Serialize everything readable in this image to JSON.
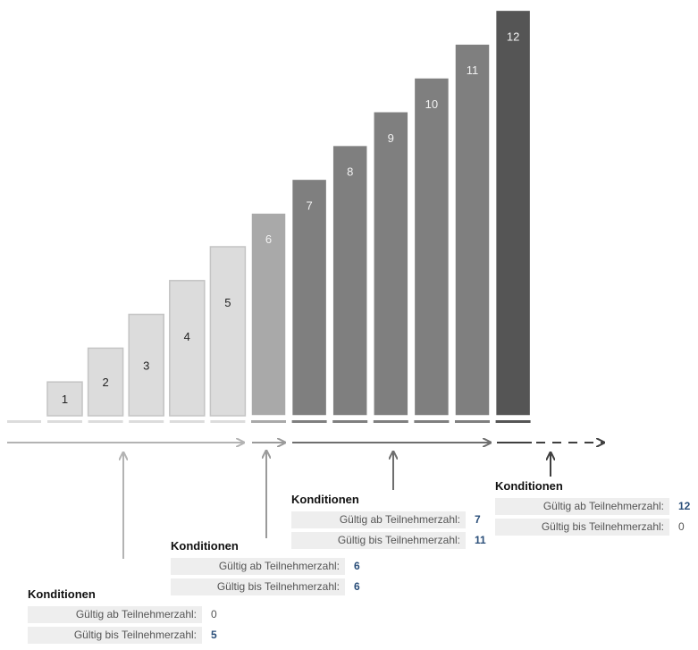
{
  "tiers": [
    {
      "label": "1",
      "value": 1,
      "group": "a"
    },
    {
      "label": "2",
      "value": 2,
      "group": "a"
    },
    {
      "label": "3",
      "value": 3,
      "group": "a"
    },
    {
      "label": "4",
      "value": 4,
      "group": "a"
    },
    {
      "label": "5",
      "value": 5,
      "group": "a"
    },
    {
      "label": "6",
      "value": 6,
      "group": "b"
    },
    {
      "label": "7",
      "value": 7,
      "group": "c"
    },
    {
      "label": "8",
      "value": 8,
      "group": "c"
    },
    {
      "label": "9",
      "value": 9,
      "group": "c"
    },
    {
      "label": "10",
      "value": 10,
      "group": "c"
    },
    {
      "label": "11",
      "value": 11,
      "group": "c"
    },
    {
      "label": "12",
      "value": 12,
      "group": "d"
    }
  ],
  "colors": {
    "group_a": "#dcdcdc",
    "group_b": "#a9a9a9",
    "group_c": "#7f7f7f",
    "group_d": "#555555",
    "arrow_a": "#b3b3b3",
    "arrow_b": "#9a9a9a",
    "arrow_c": "#6e6e6e",
    "arrow_d": "#3f3f3f",
    "value_blue": "#2a4e79"
  },
  "panels": [
    {
      "title": "Konditionen",
      "from_label": "Gültig ab Teilnehmerzahl:",
      "from_value": "0",
      "to_label": "Gültig bis Teilnehmerzahl:",
      "to_value": "5"
    },
    {
      "title": "Konditionen",
      "from_label": "Gültig ab Teilnehmerzahl:",
      "from_value": "6",
      "to_label": "Gültig bis Teilnehmerzahl:",
      "to_value": "6"
    },
    {
      "title": "Konditionen",
      "from_label": "Gültig ab Teilnehmerzahl:",
      "from_value": "7",
      "to_label": "Gültig bis Teilnehmerzahl:",
      "to_value": "11"
    },
    {
      "title": "Konditionen",
      "from_label": "Gültig ab Teilnehmerzahl:",
      "from_value": "12",
      "to_label": "Gültig bis Teilnehmerzahl:",
      "to_value": "0"
    }
  ]
}
